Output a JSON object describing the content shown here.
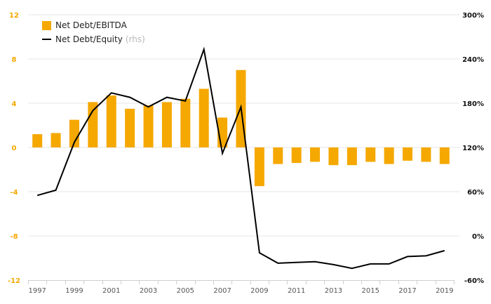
{
  "colors": {
    "bar": "#F5A800",
    "line": "#000000",
    "left_axis_text": "#F5A800",
    "right_axis_text": "#111111",
    "grid": "#e6e6e6"
  },
  "legend": {
    "bar_label": "Net Debt/EBITDA",
    "line_label": "Net Debt/Equity",
    "line_suffix": "(rhs)"
  },
  "chart_data": {
    "type": "bar+line",
    "categories": [
      "1997",
      "1998",
      "1999",
      "2000",
      "2001",
      "2002",
      "2003",
      "2004",
      "2005",
      "2006",
      "2007",
      "2008",
      "2009",
      "2010",
      "2011",
      "2012",
      "2013",
      "2014",
      "2015",
      "2016",
      "2017",
      "2018",
      "2019"
    ],
    "x_tick_labels": [
      "1997",
      "1999",
      "2001",
      "2003",
      "2005",
      "2007",
      "2009",
      "2011",
      "2013",
      "2015",
      "2017",
      "2019"
    ],
    "left_axis": {
      "ticks": [
        12,
        8,
        4,
        0,
        -4,
        -8,
        -12
      ],
      "tick_labels": [
        "12",
        "8",
        "4",
        "0",
        "-4",
        "-8",
        "-12"
      ],
      "range": [
        -12,
        12
      ]
    },
    "right_axis": {
      "ticks": [
        300,
        240,
        180,
        120,
        60,
        0,
        -60
      ],
      "tick_labels": [
        "300%",
        "240%",
        "180%",
        "120%",
        "60%",
        "0%",
        "-60%"
      ],
      "range": [
        -60,
        300
      ]
    },
    "series": [
      {
        "name": "Net Debt/EBITDA",
        "type": "bar",
        "axis": "left",
        "values": [
          1.2,
          1.3,
          2.5,
          4.1,
          4.7,
          3.5,
          3.8,
          4.1,
          4.4,
          5.3,
          2.7,
          7.0,
          -3.5,
          -1.5,
          -1.4,
          -1.3,
          -1.6,
          -1.6,
          -1.3,
          -1.5,
          -1.2,
          -1.3,
          -1.5
        ]
      },
      {
        "name": "Net Debt/Equity",
        "type": "line",
        "axis": "right",
        "values": [
          55,
          62,
          127,
          170,
          194,
          188,
          175,
          188,
          183,
          253,
          112,
          175,
          -23,
          -37,
          -36,
          -35,
          -39,
          -44,
          -38,
          -38,
          -28,
          -27,
          -20
        ]
      }
    ],
    "grid": true,
    "legend_position": "top-left"
  }
}
